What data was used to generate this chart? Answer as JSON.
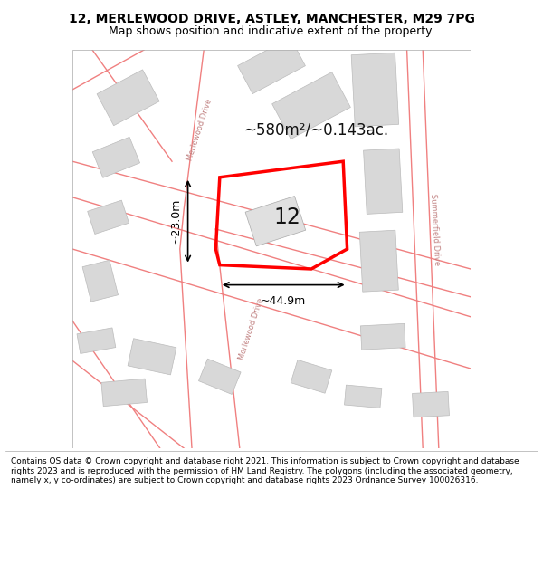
{
  "title_line1": "12, MERLEWOOD DRIVE, ASTLEY, MANCHESTER, M29 7PG",
  "title_line2": "Map shows position and indicative extent of the property.",
  "footer_text": "Contains OS data © Crown copyright and database right 2021. This information is subject to Crown copyright and database rights 2023 and is reproduced with the permission of HM Land Registry. The polygons (including the associated geometry, namely x, y co-ordinates) are subject to Crown copyright and database rights 2023 Ordnance Survey 100026316.",
  "map_bg": "#f5f5f5",
  "title_bg": "#ffffff",
  "footer_bg": "#ffffff",
  "road_color": "#f08080",
  "building_fill": "#d8d8d8",
  "building_edge": "#bbbbbb",
  "highlight_edge": "#ff0000",
  "highlight_lw": 2.5,
  "dim_color": "#000000",
  "area_text": "~580m²/~0.143ac.",
  "number_text": "12",
  "dim_width": "~44.9m",
  "dim_height": "~23.0m",
  "road_label_1": "Merlewood Drive",
  "road_label_2": "Merlewood Drive",
  "road_label_right": "Summerfield Drive"
}
